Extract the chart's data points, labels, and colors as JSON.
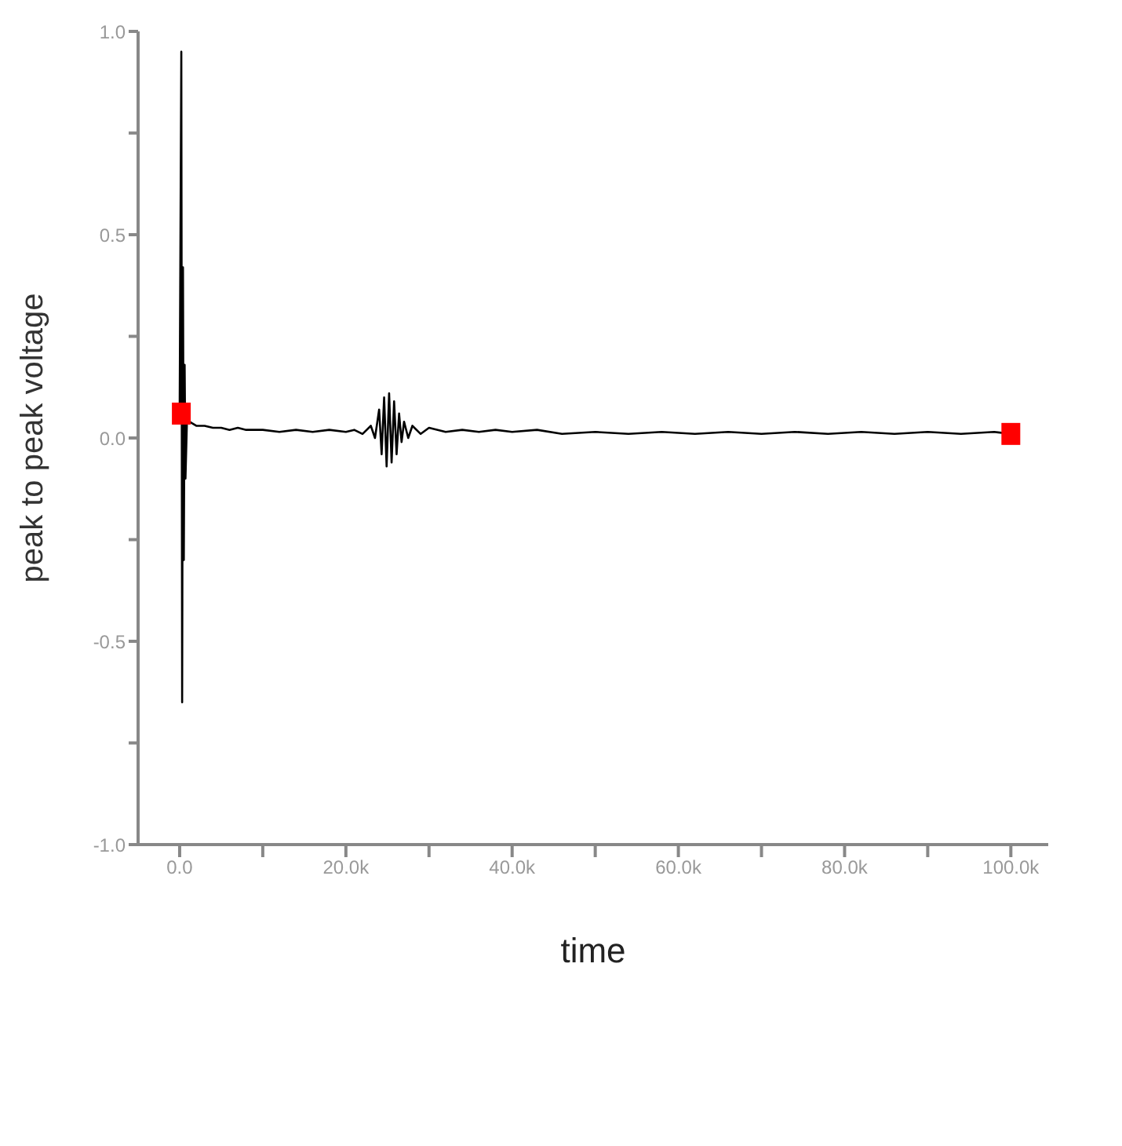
{
  "chart_data": {
    "type": "line",
    "xlabel": "time",
    "ylabel": "peak to peak voltage",
    "xlim": [
      -5000,
      104500
    ],
    "ylim": [
      -1,
      1
    ],
    "xticks": [
      {
        "value": 0,
        "label": "0.0"
      },
      {
        "value": 10000,
        "label": null
      },
      {
        "value": 20000,
        "label": "20.0k"
      },
      {
        "value": 30000,
        "label": null
      },
      {
        "value": 40000,
        "label": "40.0k"
      },
      {
        "value": 50000,
        "label": null
      },
      {
        "value": 60000,
        "label": "60.0k"
      },
      {
        "value": 70000,
        "label": null
      },
      {
        "value": 80000,
        "label": "80.0k"
      },
      {
        "value": 90000,
        "label": null
      },
      {
        "value": 100000,
        "label": "100.0k"
      }
    ],
    "yticks": [
      {
        "value": -1,
        "label": "-1.0"
      },
      {
        "value": -0.75,
        "label": null
      },
      {
        "value": -0.5,
        "label": "-0.5"
      },
      {
        "value": -0.25,
        "label": null
      },
      {
        "value": 0,
        "label": "0.0"
      },
      {
        "value": 0.25,
        "label": null
      },
      {
        "value": 0.5,
        "label": "0.5"
      },
      {
        "value": 0.75,
        "label": null
      },
      {
        "value": 1,
        "label": "1.0"
      }
    ],
    "grid": false,
    "series": [
      {
        "color": "#000000",
        "marker": "none",
        "x": [
          0,
          200,
          300,
          400,
          500,
          600,
          700,
          900,
          1200,
          1600,
          2000,
          3000,
          4000,
          5000,
          6000,
          7000,
          8000,
          9000,
          10000,
          12000,
          14000,
          16000,
          18000,
          20000,
          21000,
          22000,
          23000,
          23500,
          24000,
          24300,
          24600,
          24900,
          25200,
          25500,
          25800,
          26100,
          26400,
          26700,
          27000,
          27500,
          28000,
          29000,
          30000,
          32000,
          34000,
          36000,
          38000,
          40000,
          43000,
          46000,
          50000,
          54000,
          58000,
          62000,
          66000,
          70000,
          74000,
          78000,
          82000,
          86000,
          90000,
          94000,
          98000,
          100000
        ],
        "values": [
          0.06,
          0.95,
          -0.65,
          0.42,
          -0.3,
          0.18,
          -0.1,
          0.06,
          0.04,
          0.035,
          0.03,
          0.03,
          0.025,
          0.025,
          0.02,
          0.025,
          0.02,
          0.02,
          0.02,
          0.015,
          0.02,
          0.015,
          0.02,
          0.015,
          0.02,
          0.01,
          0.03,
          0.0,
          0.07,
          -0.04,
          0.1,
          -0.07,
          0.11,
          -0.06,
          0.09,
          -0.04,
          0.06,
          -0.01,
          0.04,
          0.0,
          0.03,
          0.01,
          0.025,
          0.015,
          0.02,
          0.015,
          0.02,
          0.015,
          0.02,
          0.01,
          0.015,
          0.01,
          0.015,
          0.01,
          0.015,
          0.01,
          0.015,
          0.01,
          0.015,
          0.01,
          0.015,
          0.01,
          0.015,
          0.01
        ]
      },
      {
        "type": "scatter",
        "color": "#ff0000",
        "marker": "square",
        "x": [
          200,
          100000
        ],
        "values": [
          0.06,
          0.01
        ]
      }
    ]
  }
}
